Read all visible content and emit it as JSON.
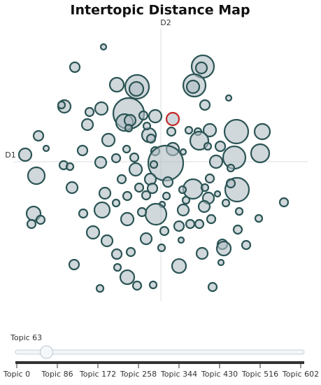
{
  "chart_data": {
    "type": "scatter",
    "title": "Intertopic Distance Map",
    "xlabel": "D1",
    "ylabel": "D2",
    "xlim": [
      -210,
      210
    ],
    "ylim": [
      -195,
      195
    ],
    "color": "#b0bec5",
    "edge_color": "#2b5454",
    "series": [
      {
        "x": [
          -82,
          -123,
          60,
          58,
          48,
          46,
          -34,
          -35,
          -63,
          97,
          63,
          -138,
          -142,
          -85,
          -102,
          -46,
          -52,
          -44,
          -8,
          -25,
          -105,
          -75,
          -46,
          -17,
          -14,
          15,
          -20,
          40,
          53,
          70,
          55,
          108,
          145,
          -175,
          -164,
          67,
          32,
          17,
          85,
          105,
          142,
          -194,
          -112,
          -49,
          -8,
          7,
          -38,
          -64,
          -86,
          79,
          -139,
          -130,
          -36,
          -10,
          100,
          -178,
          70,
          -56,
          -15,
          10,
          46,
          109,
          100,
          -127,
          -31,
          -12,
          31,
          63,
          81,
          -80,
          -48,
          8,
          -21,
          68,
          93,
          176,
          -64,
          2,
          36,
          62,
          -84,
          -7,
          32,
          -27,
          -182,
          -172,
          -185,
          -111,
          -48,
          72,
          112,
          140,
          26,
          42,
          55,
          5,
          -97,
          -77,
          -21,
          110,
          29,
          88,
          122,
          59,
          90,
          -43,
          -63,
          1,
          -124,
          -62,
          86,
          26,
          -48,
          -34,
          -11,
          -87,
          74
        ],
        "y": [
          168,
          139,
          140,
          138,
          113,
          111,
          111,
          108,
          114,
          95,
          85,
          83,
          85,
          80,
          75,
          73,
          60,
          63,
          69,
          70,
          57,
          35,
          52,
          42,
          37,
          47,
          55,
          49,
          47,
          49,
          34,
          47,
          47,
          41,
          23,
          26,
          18,
          22,
          26,
          10,
          16,
          14,
          20,
          22,
          19,
          2,
          10,
          9,
          3,
          4,
          -1,
          -3,
          -7,
          0,
          -5,
          -16,
          -20,
          -21,
          -21,
          -25,
          -35,
          -36,
          -27,
          -33,
          -33,
          -34,
          -36,
          -33,
          -42,
          -41,
          -45,
          -45,
          -44,
          -48,
          -55,
          -54,
          -55,
          -57,
          -51,
          -60,
          -65,
          -71,
          -65,
          -68,
          -70,
          -79,
          -85,
          -70,
          -78,
          -78,
          -67,
          -77,
          -88,
          -85,
          -85,
          -95,
          -97,
          -109,
          -106,
          -93,
          -108,
          -114,
          -115,
          -127,
          -120,
          -125,
          -128,
          -119,
          -143,
          -147,
          -140,
          -145,
          -161,
          -173,
          -172,
          -177,
          -175
        ],
        "sizes": [
          4,
          7,
          16,
          8,
          16,
          9,
          17,
          10,
          10,
          4,
          7,
          9,
          5,
          9,
          6,
          22,
          12,
          8,
          9,
          6,
          8,
          9,
          5,
          10,
          6,
          6,
          5,
          5,
          5,
          9,
          13,
          17,
          11,
          7,
          4,
          5,
          4,
          9,
          7,
          16,
          13,
          9,
          7,
          5,
          6,
          25,
          6,
          6,
          8,
          9,
          6,
          5,
          9,
          5,
          5,
          12,
          6,
          6,
          8,
          7,
          14,
          17,
          6,
          8,
          6,
          7,
          5,
          5,
          4,
          8,
          6,
          5,
          6,
          8,
          5,
          6,
          5,
          4,
          5,
          8,
          11,
          15,
          8,
          6,
          10,
          6,
          6,
          6,
          9,
          6,
          5,
          5,
          7,
          6,
          6,
          6,
          9,
          8,
          8,
          6,
          4,
          7,
          6,
          8,
          10,
          6,
          7,
          5,
          7,
          5,
          4,
          10,
          10,
          6,
          5,
          5,
          6
        ]
      }
    ],
    "selected": {
      "x": 17,
      "y": 65,
      "size": 9,
      "color": "#c62828"
    }
  },
  "slider": {
    "label": "Topic 63",
    "value": 63,
    "range": [
      0,
      602
    ],
    "ticks": [
      {
        "value": 0,
        "label": "Topic 0"
      },
      {
        "value": 86,
        "label": "Topic 86"
      },
      {
        "value": 172,
        "label": "Topic 172"
      },
      {
        "value": 258,
        "label": "Topic 258"
      },
      {
        "value": 344,
        "label": "Topic 344"
      },
      {
        "value": 430,
        "label": "Topic 430"
      },
      {
        "value": 516,
        "label": "Topic 516"
      },
      {
        "value": 602,
        "label": "Topic 602"
      }
    ]
  }
}
